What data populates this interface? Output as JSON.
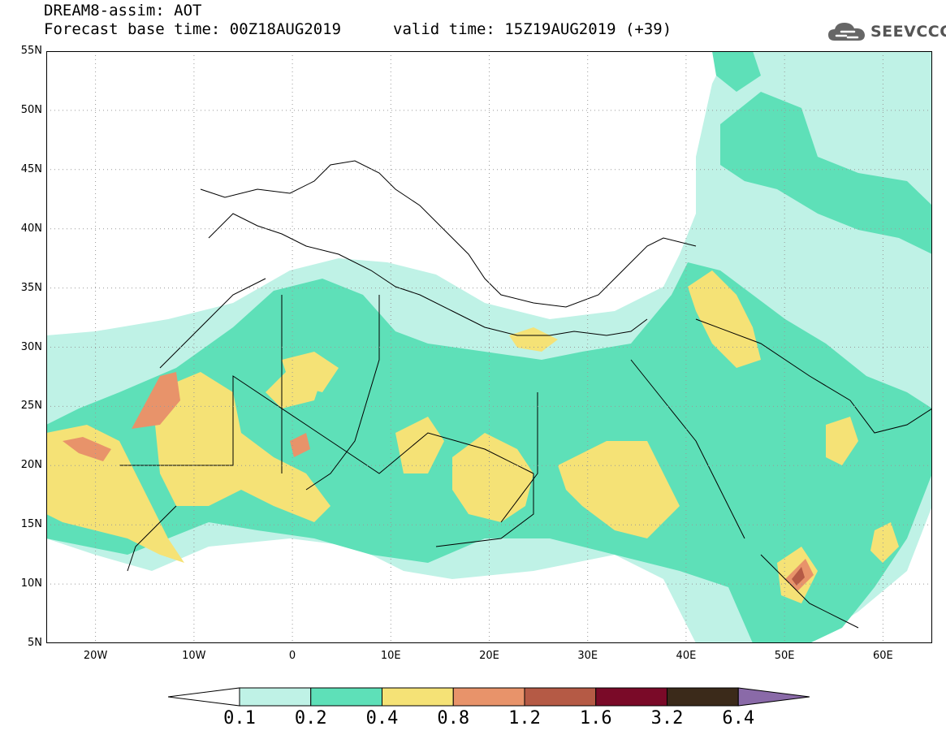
{
  "header": {
    "title": "DREAM8-assim: AOT",
    "base_time": "Forecast base time: 00Z18AUG2019",
    "valid_time": "valid time: 15Z19AUG2019 (+39)"
  },
  "logo": {
    "text": "SEEVCCC",
    "icon": "cloud-icon"
  },
  "map": {
    "lat_labels": [
      "55N",
      "50N",
      "45N",
      "40N",
      "35N",
      "30N",
      "25N",
      "20N",
      "15N",
      "10N",
      "5N"
    ],
    "lon_labels": [
      "20W",
      "10W",
      "0",
      "10E",
      "20E",
      "30E",
      "40E",
      "50E",
      "60E"
    ],
    "extent": {
      "lon_min": -25,
      "lon_max": 65,
      "lat_min": 5,
      "lat_max": 55
    }
  },
  "legend": {
    "levels": [
      "0.1",
      "0.2",
      "0.4",
      "0.8",
      "1.2",
      "1.6",
      "3.2",
      "6.4"
    ],
    "colors": [
      "#ffffff",
      "#bff2e6",
      "#5ee0b8",
      "#f5e276",
      "#e8936a",
      "#b55a45",
      "#7a0a28",
      "#3b2a1a",
      "#8a6aa8"
    ]
  }
}
